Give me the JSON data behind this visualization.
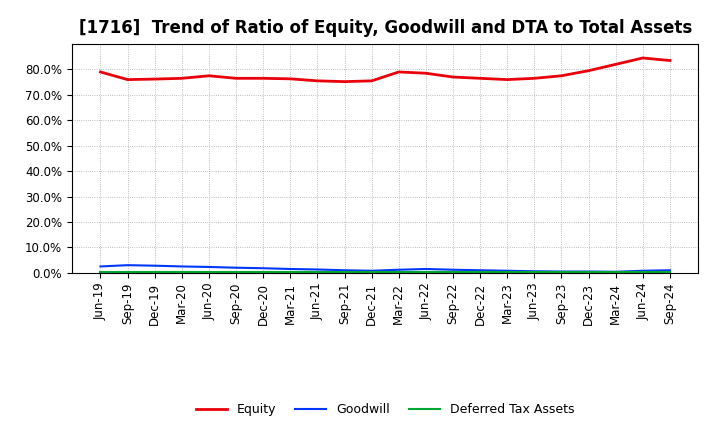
{
  "title": "[1716]  Trend of Ratio of Equity, Goodwill and DTA to Total Assets",
  "labels": [
    "Jun-19",
    "Sep-19",
    "Dec-19",
    "Mar-20",
    "Jun-20",
    "Sep-20",
    "Dec-20",
    "Mar-21",
    "Jun-21",
    "Sep-21",
    "Dec-21",
    "Mar-22",
    "Jun-22",
    "Sep-22",
    "Dec-22",
    "Mar-23",
    "Jun-23",
    "Sep-23",
    "Dec-23",
    "Mar-24",
    "Jun-24",
    "Sep-24"
  ],
  "equity": [
    79.0,
    76.0,
    76.2,
    76.5,
    77.5,
    76.5,
    76.5,
    76.3,
    75.5,
    75.2,
    75.5,
    79.0,
    78.5,
    77.0,
    76.5,
    76.0,
    76.5,
    77.5,
    79.5,
    82.0,
    84.5,
    83.5
  ],
  "goodwill": [
    2.5,
    3.0,
    2.8,
    2.5,
    2.3,
    2.0,
    1.8,
    1.5,
    1.3,
    1.0,
    0.8,
    1.2,
    1.5,
    1.2,
    1.0,
    0.8,
    0.6,
    0.5,
    0.5,
    0.4,
    0.8,
    1.0
  ],
  "dta": [
    0.5,
    0.5,
    0.5,
    0.5,
    0.5,
    0.5,
    0.5,
    0.5,
    0.5,
    0.5,
    0.5,
    0.5,
    0.5,
    0.5,
    0.5,
    0.5,
    0.5,
    0.5,
    0.5,
    0.5,
    0.5,
    0.5
  ],
  "equity_color": "#e8000a",
  "goodwill_color": "#0037ff",
  "dta_color": "#00a832",
  "background_color": "#ffffff",
  "grid_color": "#aaaaaa",
  "ylim": [
    0,
    90
  ],
  "yticks": [
    0,
    10,
    20,
    30,
    40,
    50,
    60,
    70,
    80
  ],
  "legend_labels": [
    "Equity",
    "Goodwill",
    "Deferred Tax Assets"
  ],
  "title_fontsize": 12,
  "tick_fontsize": 8.5,
  "legend_fontsize": 9
}
